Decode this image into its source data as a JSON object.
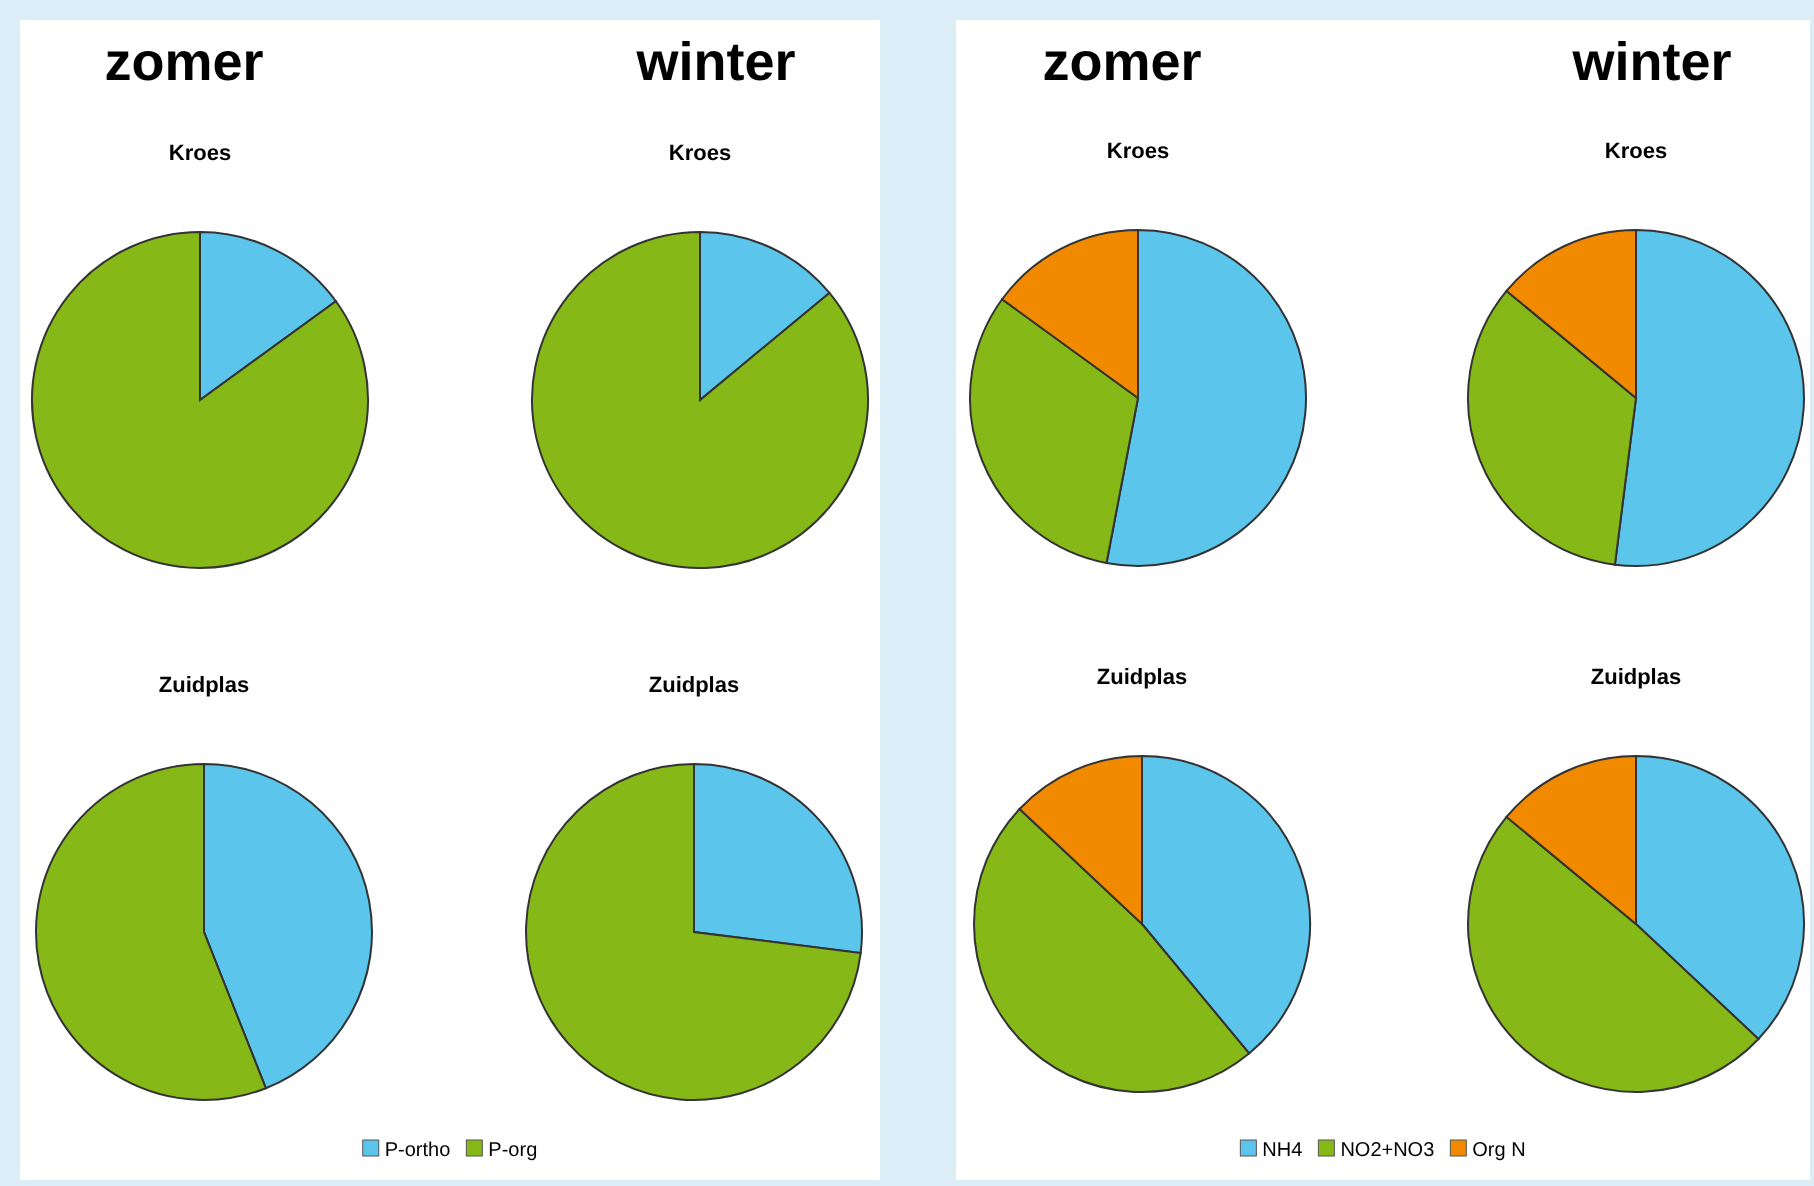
{
  "chart_data": [
    {
      "type": "pie",
      "title": "Kroes",
      "annotations": [
        "zomer"
      ],
      "categories": [
        null,
        null
      ],
      "values": [
        15,
        85
      ],
      "colors": [
        "#5bc5ec",
        "#86b817"
      ],
      "legend": false
    },
    {
      "type": "pie",
      "title": "Kroes",
      "annotations": [
        "winter"
      ],
      "categories": [
        null,
        null
      ],
      "values": [
        14,
        86
      ],
      "colors": [
        "#5bc5ec",
        "#86b817"
      ],
      "legend": false
    },
    {
      "type": "pie",
      "title": "Zuidplas",
      "categories": [
        "P-ortho",
        "P-org"
      ],
      "values": [
        44,
        56
      ],
      "colors": [
        "#5bc5ec",
        "#86b817"
      ],
      "legend": "bottom"
    },
    {
      "type": "pie",
      "title": "Zuidplas",
      "categories": [
        null,
        null
      ],
      "values": [
        27,
        73
      ],
      "colors": [
        "#5bc5ec",
        "#86b817"
      ],
      "legend": false
    },
    {
      "type": "pie",
      "title": "Kroes",
      "annotations": [
        "zomer"
      ],
      "categories": [
        null,
        null,
        null
      ],
      "values": [
        53,
        32,
        15
      ],
      "colors": [
        "#5bc5ec",
        "#86b817",
        "#f28a00"
      ],
      "legend": false
    },
    {
      "type": "pie",
      "title": "Kroes",
      "annotations": [
        "winter"
      ],
      "categories": [
        null,
        null,
        null
      ],
      "values": [
        52,
        34,
        14
      ],
      "colors": [
        "#5bc5ec",
        "#86b817",
        "#f28a00"
      ],
      "legend": false
    },
    {
      "type": "pie",
      "title": "Zuidplas",
      "categories": [
        "NH4",
        "NO2+NO3",
        "Org N"
      ],
      "values": [
        39,
        48,
        13
      ],
      "colors": [
        "#5bc5ec",
        "#86b817",
        "#f28a00"
      ],
      "legend": "bottom"
    },
    {
      "type": "pie",
      "title": "Zuidplas",
      "categories": [
        null,
        null,
        null
      ],
      "values": [
        37,
        49,
        14
      ],
      "colors": [
        "#5bc5ec",
        "#86b817",
        "#f28a00"
      ],
      "legend": false
    }
  ]
}
